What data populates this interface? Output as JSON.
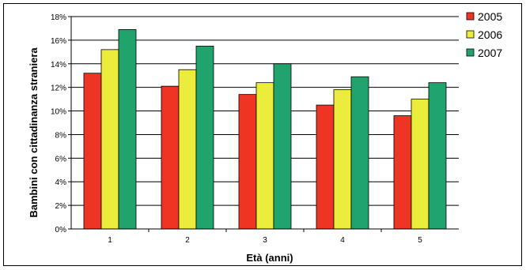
{
  "chart_data": {
    "type": "bar",
    "title": "",
    "xlabel": "Età (anni)",
    "ylabel": "Bambini con cittadinanza straniera",
    "categories": [
      "1",
      "2",
      "3",
      "4",
      "5"
    ],
    "ylim": [
      0,
      18
    ],
    "yticks": [
      "0%",
      "2%",
      "4%",
      "6%",
      "8%",
      "10%",
      "12%",
      "14%",
      "16%",
      "18%"
    ],
    "grid": true,
    "legend_position": "right",
    "series": [
      {
        "name": "2005",
        "color": "#ee3524",
        "values": [
          13.2,
          12.1,
          11.4,
          10.5,
          9.6
        ]
      },
      {
        "name": "2006",
        "color": "#ecec3c",
        "values": [
          15.2,
          13.5,
          12.4,
          11.8,
          11.0
        ]
      },
      {
        "name": "2007",
        "color": "#20a36c",
        "values": [
          16.9,
          15.5,
          14.0,
          12.9,
          12.4
        ]
      }
    ]
  }
}
